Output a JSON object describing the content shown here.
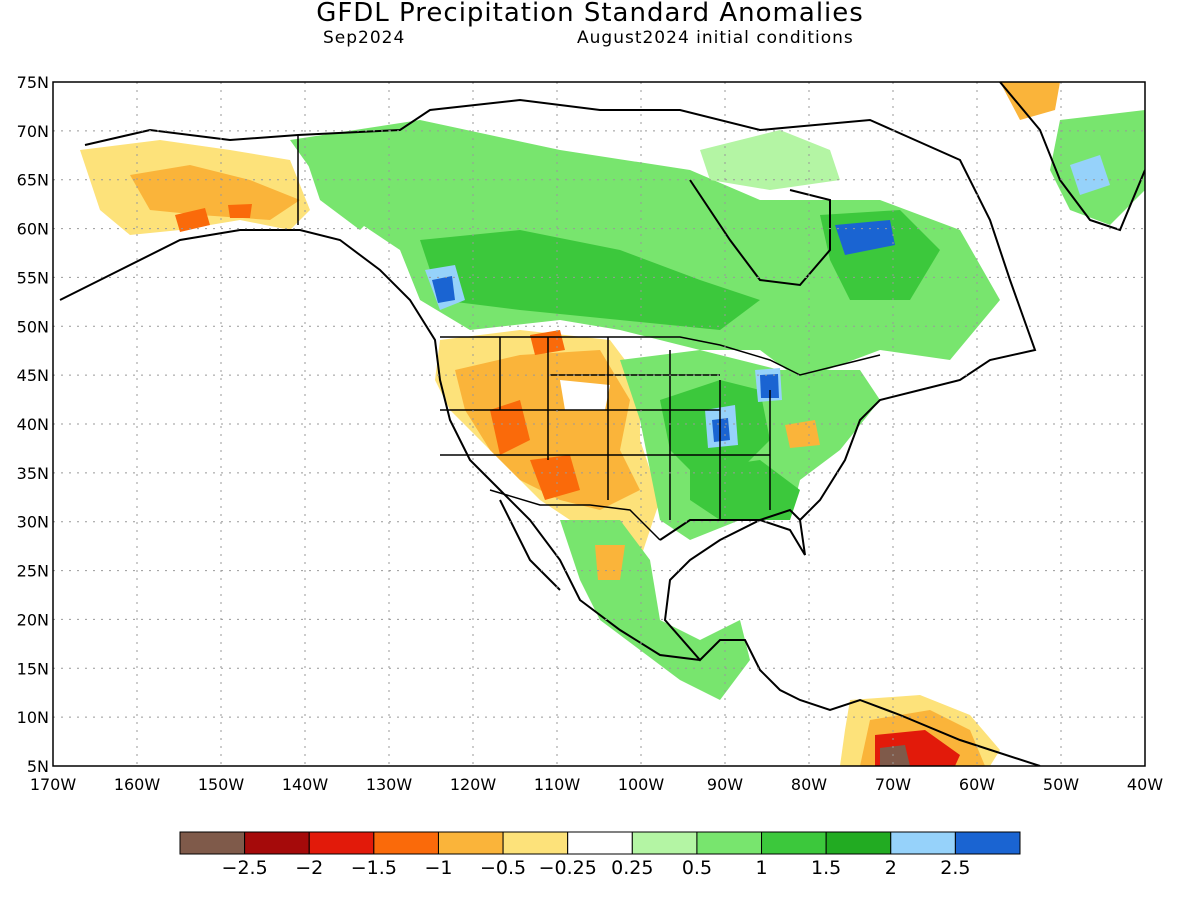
{
  "header": {
    "title": "GFDL Precipitation Standard Anomalies",
    "month": "Sep2024",
    "init": "August2024 initial conditions"
  },
  "map": {
    "lat_ticks": [
      "75N",
      "70N",
      "65N",
      "60N",
      "55N",
      "50N",
      "45N",
      "40N",
      "35N",
      "30N",
      "25N",
      "20N",
      "15N",
      "10N",
      "5N"
    ],
    "lon_ticks": [
      "170W",
      "160W",
      "150W",
      "140W",
      "130W",
      "120W",
      "110W",
      "100W",
      "90W",
      "80W",
      "70W",
      "60W",
      "50W",
      "40W"
    ],
    "lon_range": [
      -170,
      -40
    ],
    "lat_range": [
      5,
      75
    ],
    "grid": "dotted"
  },
  "colorbar": {
    "colors": [
      "#7f5a4a",
      "#a50a0a",
      "#e21a0a",
      "#fa6a0a",
      "#fab43a",
      "#fde27a",
      "#ffffff",
      "#b4f5a4",
      "#78e56e",
      "#3cc83c",
      "#22ab22",
      "#96d2fa",
      "#1a64d2"
    ],
    "labels": [
      "−2.5",
      "−2",
      "−1.5",
      "−1",
      "−0.5",
      "−0.25",
      "0.25",
      "0.5",
      "1",
      "1.5",
      "2",
      "2.5"
    ]
  },
  "anomaly_regions": [
    {
      "name": "alaska-dry",
      "color": "#fab43a",
      "lon": -152,
      "lat": 64,
      "rx": 10,
      "ry": 3
    },
    {
      "name": "southwest-dry",
      "color": "#fab43a",
      "lon": -112,
      "lat": 40,
      "rx": 6,
      "ry": 6
    },
    {
      "name": "great-lakes-wet",
      "color": "#1a64d2",
      "lon": -86,
      "lat": 44,
      "rx": 1,
      "ry": 1
    },
    {
      "name": "venezuela-dry",
      "color": "#e21a0a",
      "lon": -67,
      "lat": 7,
      "rx": 4,
      "ry": 2
    }
  ]
}
